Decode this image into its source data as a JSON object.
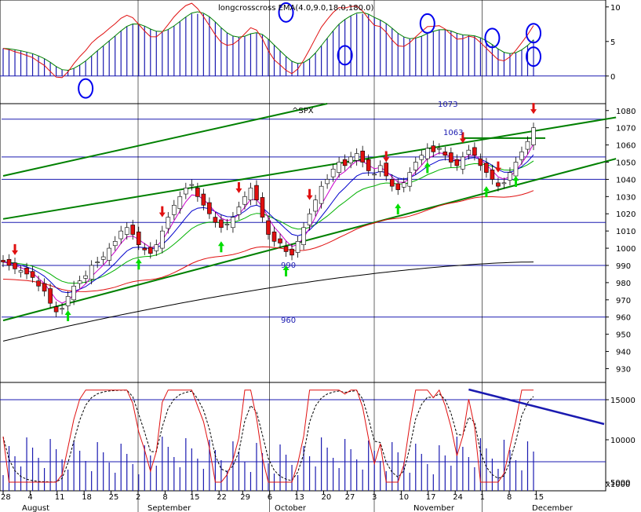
{
  "chart_data": {
    "type": "candlestick",
    "title": "longcrosscross EMA(4.0,9.0,18.0,180.0)",
    "symbol": "^SPX",
    "x_tick_labels": [
      "28",
      "4",
      "11",
      "18",
      "25",
      "2",
      "8",
      "15",
      "22",
      "29",
      "6",
      "13",
      "20",
      "27",
      "3",
      "10",
      "17",
      "24",
      "1",
      "8",
      "15"
    ],
    "month_labels": [
      "August",
      "September",
      "October",
      "November",
      "December"
    ],
    "price_axis": {
      "ylim": [
        922,
        1084
      ],
      "ticks": [
        930,
        940,
        950,
        960,
        970,
        980,
        990,
        1000,
        1010,
        1020,
        1030,
        1040,
        1050,
        1060,
        1070,
        1080
      ]
    },
    "top_panel_axis": {
      "ylim": [
        -4,
        11
      ],
      "ticks": [
        0,
        5,
        10
      ],
      "ticks_text": [
        "0",
        "5",
        "10"
      ]
    },
    "bottom_panel_axis": {
      "ticks_text": [
        "5000",
        "10000",
        "15000"
      ],
      "unit_label": "x1000"
    },
    "level_labels": [
      {
        "value": 990,
        "text": "990"
      },
      {
        "value": 960,
        "text": "960"
      },
      {
        "value": 1063,
        "text": "1063"
      },
      {
        "value": 1073,
        "text": "1073"
      }
    ],
    "horizontal_levels": [
      960,
      990,
      1015,
      1040,
      1053,
      1075
    ],
    "close": [
      992,
      990,
      988,
      987,
      985,
      983,
      978,
      975,
      968,
      963,
      965,
      972,
      978,
      981,
      984,
      990,
      992,
      995,
      1000,
      1004,
      1010,
      1012,
      1008,
      1002,
      999,
      997,
      1002,
      1010,
      1018,
      1025,
      1030,
      1035,
      1037,
      1030,
      1025,
      1020,
      1015,
      1012,
      1014,
      1018,
      1024,
      1030,
      1035,
      1028,
      1018,
      1008,
      1004,
      1003,
      998,
      996,
      1004,
      1012,
      1020,
      1028,
      1036,
      1040,
      1046,
      1050,
      1048,
      1053,
      1055,
      1050,
      1045,
      1043,
      1048,
      1042,
      1036,
      1034,
      1038,
      1044,
      1050,
      1054,
      1058,
      1056,
      1058,
      1054,
      1050,
      1048,
      1053,
      1057,
      1054,
      1048,
      1044,
      1040,
      1036,
      1038,
      1044,
      1050,
      1056,
      1062,
      1070
    ],
    "colors": {
      "up_candle": "#ffffff",
      "down_candle": "#e01010",
      "ema_blue": "#0000cc",
      "ema_magenta": "#cc00cc",
      "ema_green": "#00b000",
      "ema_red": "#e01010",
      "trend": "#008000",
      "level": "#1a1ab0",
      "histogram": "#1a1ab0",
      "sell_arrow": "#e01010",
      "buy_arrow": "#00dd00"
    }
  }
}
